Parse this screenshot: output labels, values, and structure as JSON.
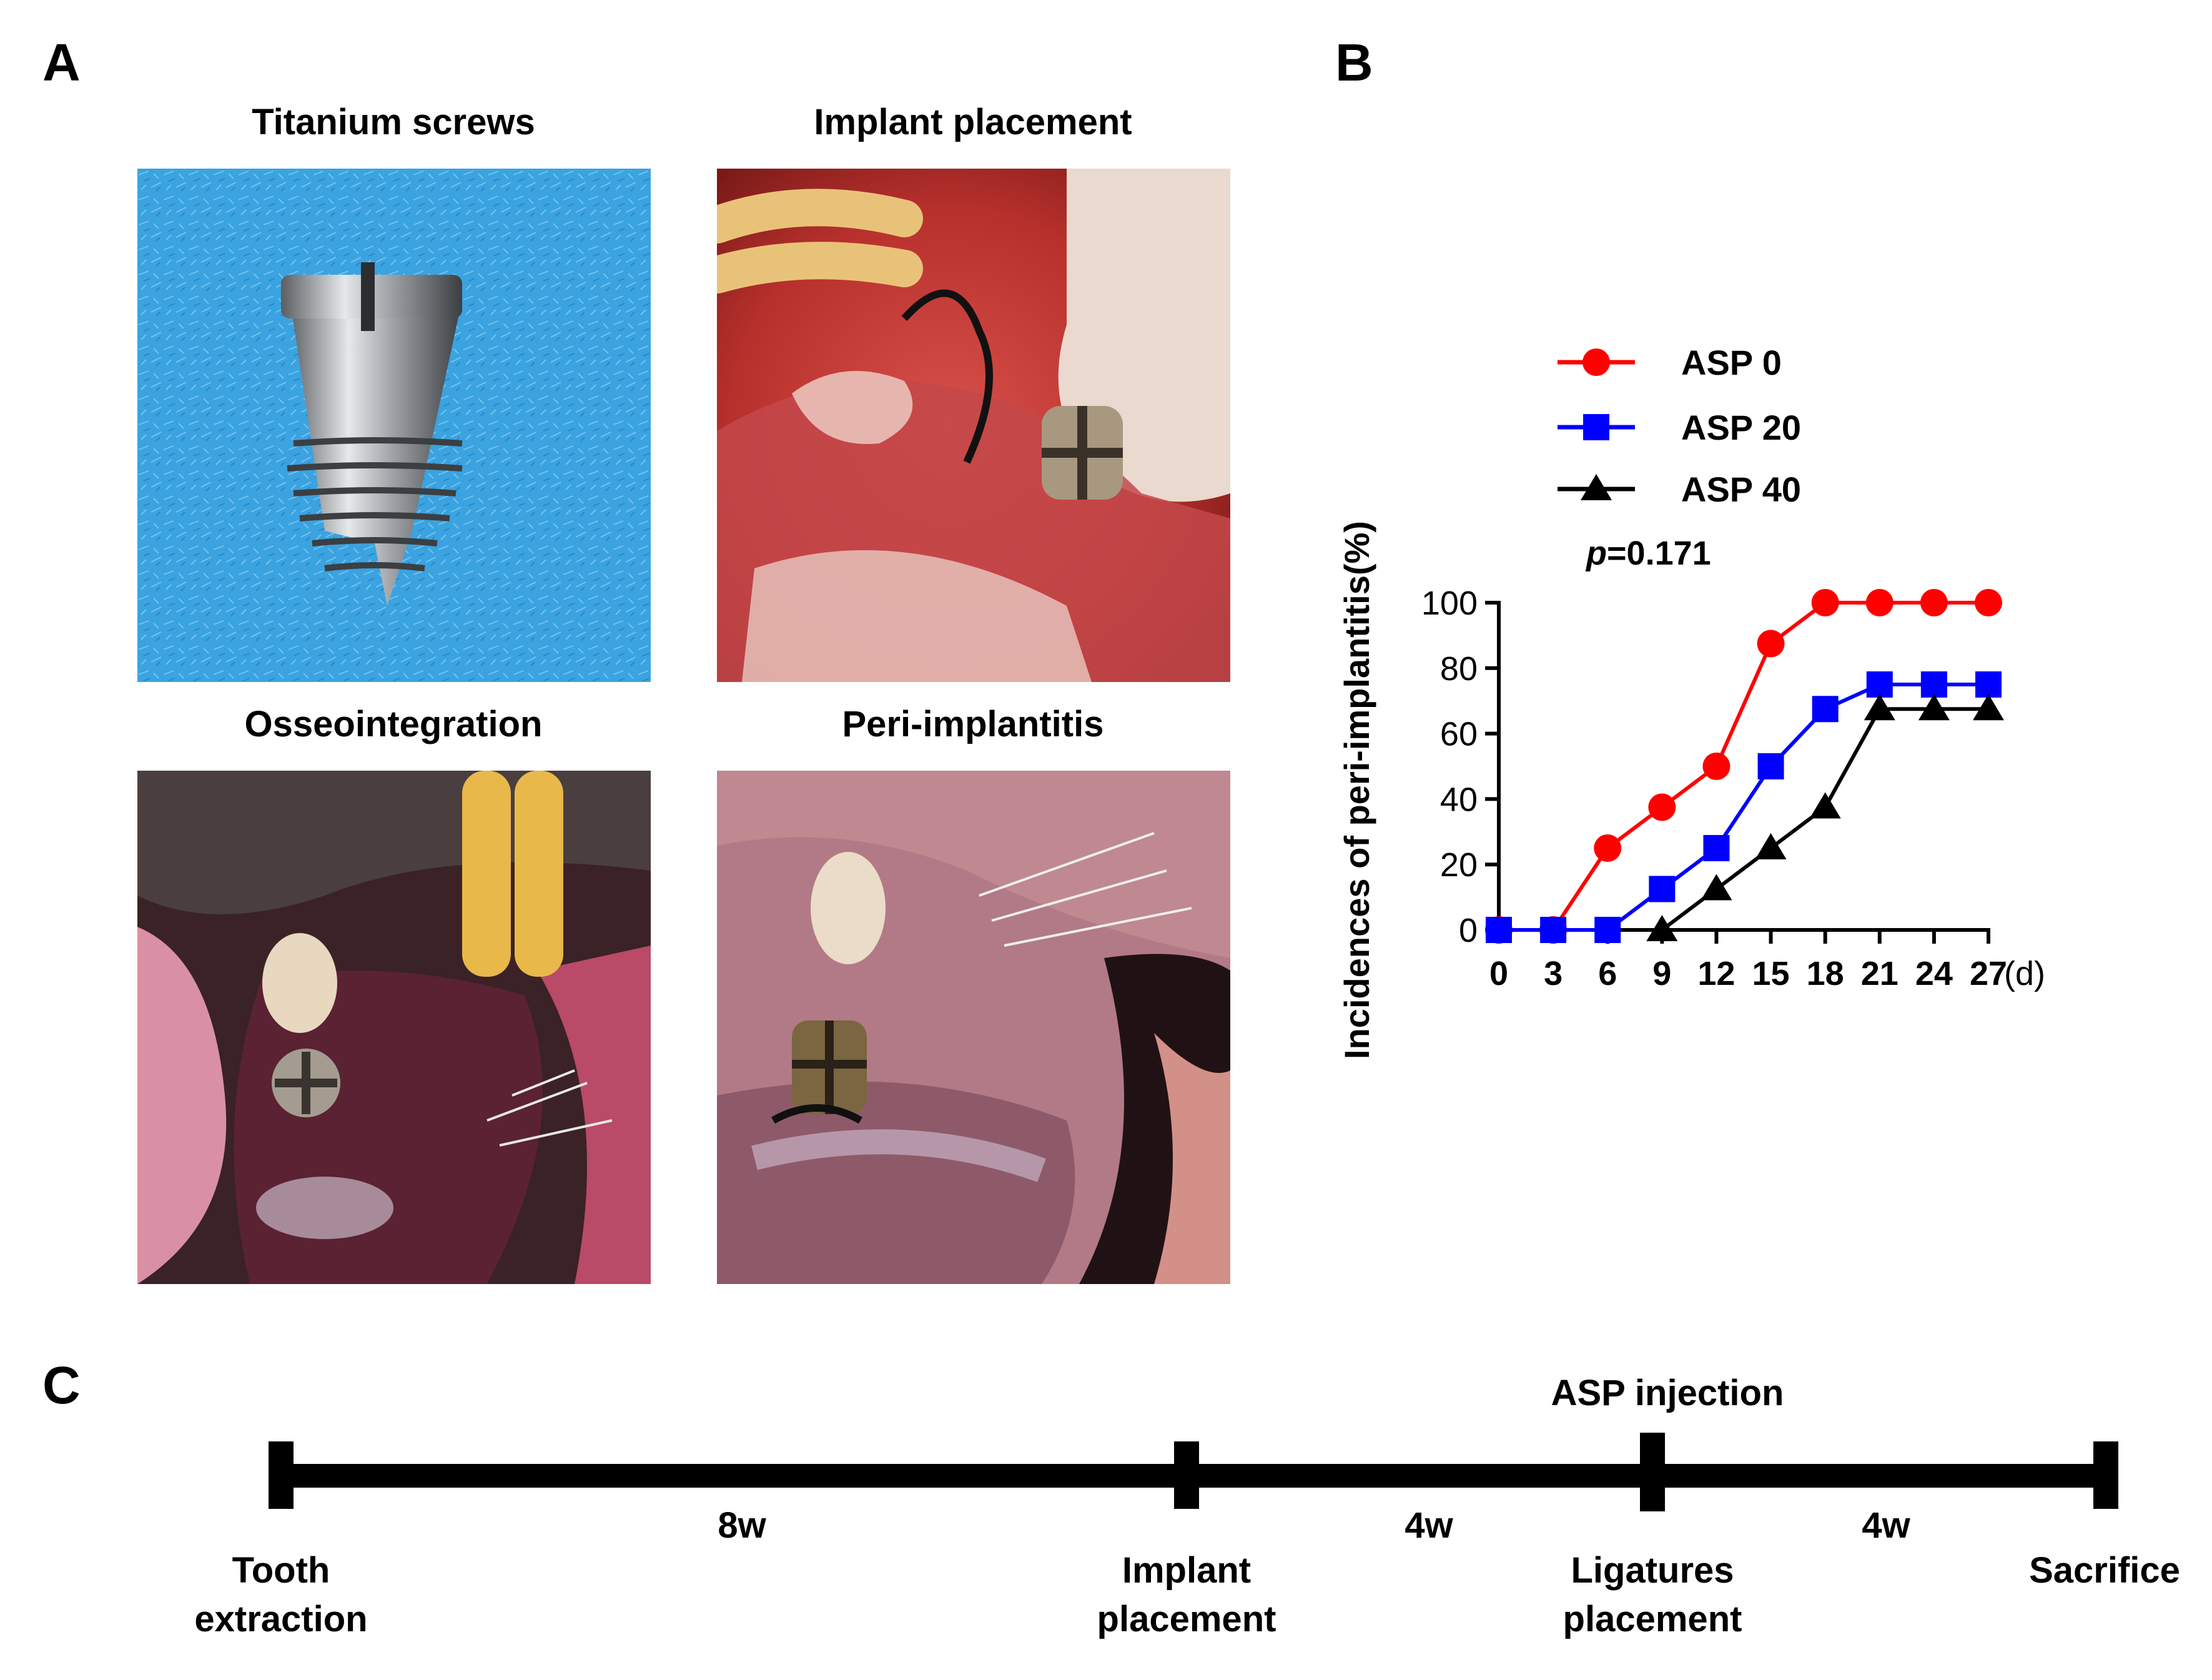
{
  "panels": {
    "a": "A",
    "b": "B",
    "c": "C"
  },
  "photos": [
    {
      "title": "Titanium screws",
      "scene": "titanium-screw-on-blue-cloth"
    },
    {
      "title": "Implant placement",
      "scene": "implant-placement-surgical-site"
    },
    {
      "title": "Osseointegration",
      "scene": "osseointegrated-implant-in-rat-mouth"
    },
    {
      "title": "Peri-implantitis",
      "scene": "peri-implantitis-implant-in-rat-mouth"
    }
  ],
  "chart_data": {
    "type": "line",
    "ylabel": "Incidences of peri-implantitis(%)",
    "xlabel": "",
    "x_unit": "(d)",
    "x": [
      0,
      3,
      6,
      9,
      12,
      15,
      18,
      21,
      24,
      27
    ],
    "x_tick_labels": [
      "0",
      "3",
      "6",
      "9",
      "12",
      "15",
      "18",
      "21",
      "24",
      "27"
    ],
    "xlim": [
      0,
      27
    ],
    "ylim": [
      0,
      100
    ],
    "y_ticks": [
      0,
      20,
      40,
      60,
      80,
      100
    ],
    "y_tick_labels": [
      "0",
      "20",
      "40",
      "60",
      "80",
      "100"
    ],
    "grid": false,
    "annotation": {
      "italic": "p",
      "rest": "=0.171"
    },
    "legend_position": "top",
    "series": [
      {
        "name": "ASP 0",
        "color": "#ff0000",
        "marker": "circle",
        "x": [
          0,
          3,
          6,
          9,
          12,
          15,
          18,
          21,
          24,
          27
        ],
        "values": [
          0,
          0,
          25,
          37.5,
          50,
          87.5,
          100,
          100,
          100,
          100
        ]
      },
      {
        "name": "ASP 20",
        "color": "#0000ff",
        "marker": "square",
        "x": [
          0,
          3,
          6,
          9,
          12,
          15,
          18,
          21,
          24,
          27
        ],
        "values": [
          0,
          0,
          0,
          12.5,
          25,
          50,
          67.5,
          75,
          75,
          75
        ]
      },
      {
        "name": "ASP 40",
        "color": "#000000",
        "marker": "triangle",
        "x": [
          9,
          12,
          15,
          18,
          21,
          24,
          27
        ],
        "values": [
          0,
          12.5,
          25,
          37.5,
          67.5,
          67.5,
          67.5
        ]
      }
    ]
  },
  "timeline": {
    "injection_label": "ASP injection",
    "intervals": [
      "8w",
      "4w",
      "4w"
    ],
    "events": [
      {
        "line1": "Tooth",
        "line2": "extraction"
      },
      {
        "line1": "Implant",
        "line2": "placement"
      },
      {
        "line1": "Ligatures",
        "line2": "placement"
      },
      {
        "line1": "Sacrifice",
        "line2": ""
      }
    ]
  }
}
